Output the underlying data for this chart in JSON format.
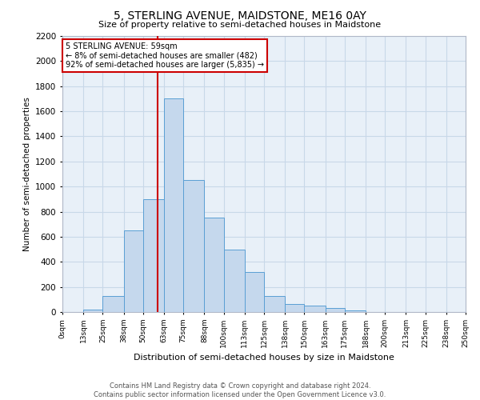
{
  "title": "5, STERLING AVENUE, MAIDSTONE, ME16 0AY",
  "subtitle": "Size of property relative to semi-detached houses in Maidstone",
  "xlabel": "Distribution of semi-detached houses by size in Maidstone",
  "ylabel": "Number of semi-detached properties",
  "bar_color": "#c5d8ed",
  "bar_edge_color": "#5a9fd4",
  "annotation_title": "5 STERLING AVENUE: 59sqm",
  "annotation_line1": "← 8% of semi-detached houses are smaller (482)",
  "annotation_line2": "92% of semi-detached houses are larger (5,835) →",
  "property_size": 59,
  "bin_edges": [
    0,
    13,
    25,
    38,
    50,
    63,
    75,
    88,
    100,
    113,
    125,
    138,
    150,
    163,
    175,
    188,
    200,
    213,
    225,
    238,
    250
  ],
  "bar_heights": [
    0,
    20,
    125,
    650,
    900,
    1700,
    1050,
    750,
    500,
    320,
    125,
    65,
    50,
    35,
    10,
    0,
    0,
    0,
    0,
    0
  ],
  "tick_labels": [
    "0sqm",
    "13sqm",
    "25sqm",
    "38sqm",
    "50sqm",
    "63sqm",
    "75sqm",
    "88sqm",
    "100sqm",
    "113sqm",
    "125sqm",
    "138sqm",
    "150sqm",
    "163sqm",
    "175sqm",
    "188sqm",
    "200sqm",
    "213sqm",
    "225sqm",
    "238sqm",
    "250sqm"
  ],
  "ylim": [
    0,
    2200
  ],
  "yticks": [
    0,
    200,
    400,
    600,
    800,
    1000,
    1200,
    1400,
    1600,
    1800,
    2000,
    2200
  ],
  "footer_line1": "Contains HM Land Registry data © Crown copyright and database right 2024.",
  "footer_line2": "Contains public sector information licensed under the Open Government Licence v3.0.",
  "background_color": "#ffffff",
  "plot_bg_color": "#e8f0f8",
  "grid_color": "#c8d8e8",
  "annotation_box_color": "#ffffff",
  "annotation_box_edge": "#cc0000",
  "red_line_color": "#cc0000"
}
